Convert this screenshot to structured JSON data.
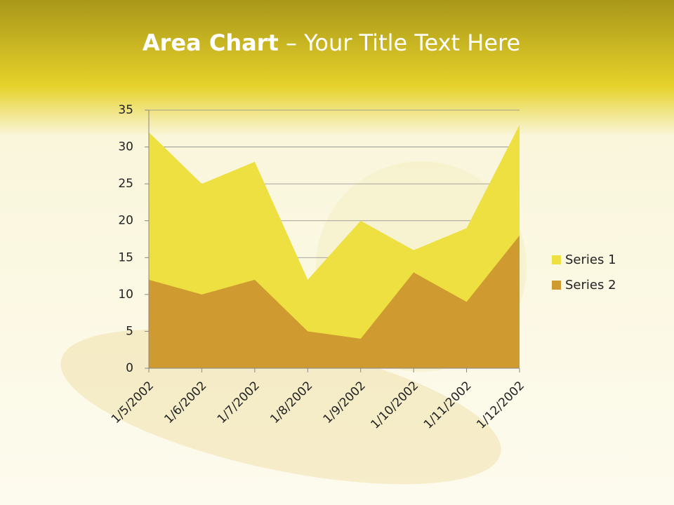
{
  "slide": {
    "title_bold": "Area Chart",
    "title_rest": "– Your Title Text Here"
  },
  "chart_data": {
    "type": "area",
    "categories": [
      "1/5/2002",
      "1/6/2002",
      "1/7/2002",
      "1/8/2002",
      "1/9/2002",
      "1/10/2002",
      "1/11/2002",
      "1/12/2002"
    ],
    "series": [
      {
        "name": "Series 1",
        "color": "#ede040",
        "values": [
          32,
          25,
          28,
          12,
          20,
          16,
          19,
          33
        ]
      },
      {
        "name": "Series 2",
        "color": "#cf9a30",
        "values": [
          12,
          10,
          12,
          5,
          4,
          13,
          9,
          18
        ]
      }
    ],
    "ylim": [
      0,
      35
    ],
    "yticks": [
      0,
      5,
      10,
      15,
      20,
      25,
      30,
      35
    ],
    "grid": true,
    "legend": "right"
  }
}
